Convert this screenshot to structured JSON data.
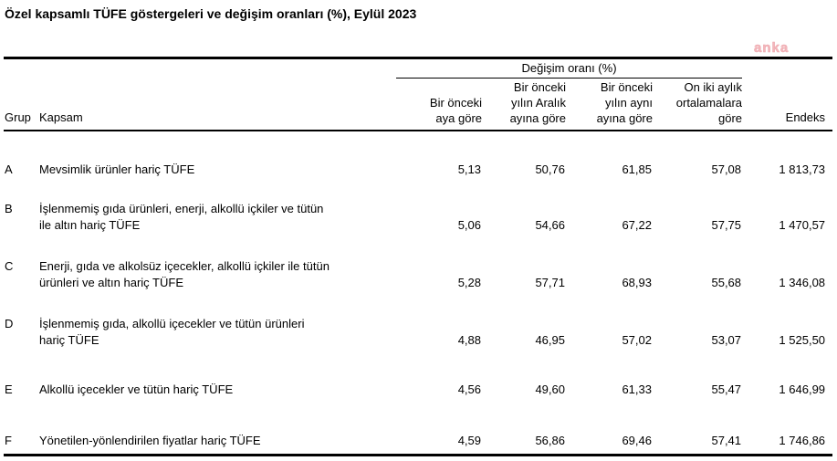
{
  "page": {
    "title": "Özel kapsamlı TÜFE göstergeleri ve değişim oranları (%), Eylül 2023",
    "watermark": "anka"
  },
  "colors": {
    "watermark_pink": "#f3b7bc",
    "text": "#000000",
    "background": "#ffffff"
  },
  "table": {
    "spanner": "Değişim oranı (%)",
    "headers": {
      "grup": "Grup",
      "kapsam": "Kapsam",
      "monthly": "Bir önceki\naya göre",
      "since_december": "Bir önceki\nyılın Aralık\nayına göre",
      "year_over_year": "Bir önceki\nyılın aynı\nayına göre",
      "twelve_month_avg": "On iki aylık\nortalamalara\ngöre",
      "endeks": "Endeks"
    },
    "rows": [
      {
        "grup": "A",
        "kapsam": "Mevsimlik ürünler hariç TÜFE",
        "monthly": "5,13",
        "since_december": "50,76",
        "year_over_year": "61,85",
        "twelve_month_avg": "57,08",
        "endeks": "1 813,73"
      },
      {
        "grup": "B",
        "kapsam": "İşlenmemiş gıda ürünleri, enerji, alkollü içkiler ve tütün\nile altın hariç TÜFE",
        "monthly": "5,06",
        "since_december": "54,66",
        "year_over_year": "67,22",
        "twelve_month_avg": "57,75",
        "endeks": "1 470,57"
      },
      {
        "grup": "C",
        "kapsam": "Enerji, gıda ve alkolsüz içecekler, alkollü içkiler ile tütün\nürünleri ve altın hariç TÜFE",
        "monthly": "5,28",
        "since_december": "57,71",
        "year_over_year": "68,93",
        "twelve_month_avg": "55,68",
        "endeks": "1 346,08"
      },
      {
        "grup": "D",
        "kapsam": "İşlenmemiş gıda, alkollü içecekler ve tütün ürünleri\nhariç TÜFE",
        "monthly": "4,88",
        "since_december": "46,95",
        "year_over_year": "57,02",
        "twelve_month_avg": "53,07",
        "endeks": "1 525,50"
      },
      {
        "grup": "E",
        "kapsam": "Alkollü içecekler ve tütün hariç TÜFE",
        "monthly": "4,56",
        "since_december": "49,60",
        "year_over_year": "61,33",
        "twelve_month_avg": "55,47",
        "endeks": "1 646,99"
      },
      {
        "grup": "F",
        "kapsam": "Yönetilen-yönlendirilen fiyatlar hariç TÜFE",
        "monthly": "4,59",
        "since_december": "56,86",
        "year_over_year": "69,46",
        "twelve_month_avg": "57,41",
        "endeks": "1 746,86"
      }
    ]
  },
  "chart_data": {
    "type": "table",
    "title": "Özel kapsamlı TÜFE göstergeleri ve değişim oranları (%), Eylül 2023",
    "columns": [
      "Grup",
      "Kapsam",
      "Bir önceki aya göre",
      "Bir önceki yılın Aralık ayına göre",
      "Bir önceki yılın aynı ayına göre",
      "On iki aylık ortalamalara göre",
      "Endeks"
    ],
    "rows": [
      [
        "A",
        "Mevsimlik ürünler hariç TÜFE",
        5.13,
        50.76,
        61.85,
        57.08,
        1813.73
      ],
      [
        "B",
        "İşlenmemiş gıda ürünleri, enerji, alkollü içkiler ve tütün ile altın hariç TÜFE",
        5.06,
        54.66,
        67.22,
        57.75,
        1470.57
      ],
      [
        "C",
        "Enerji, gıda ve alkolsüz içecekler, alkollü içkiler ile tütün ürünleri ve altın hariç TÜFE",
        5.28,
        57.71,
        68.93,
        55.68,
        1346.08
      ],
      [
        "D",
        "İşlenmemiş gıda, alkollü içecekler ve tütün ürünleri hariç TÜFE",
        4.88,
        46.95,
        57.02,
        53.07,
        1525.5
      ],
      [
        "E",
        "Alkollü içecekler ve tütün hariç TÜFE",
        4.56,
        49.6,
        61.33,
        55.47,
        1646.99
      ],
      [
        "F",
        "Yönetilen-yönlendirilen fiyatlar hariç TÜFE",
        4.59,
        56.86,
        69.46,
        57.41,
        1746.86
      ]
    ]
  }
}
